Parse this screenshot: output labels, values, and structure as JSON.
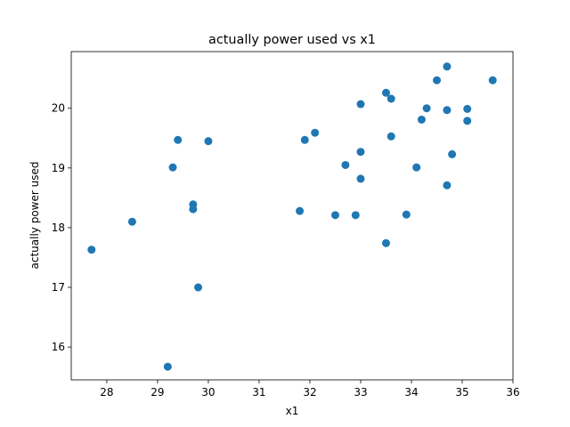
{
  "chart_data": {
    "type": "scatter",
    "title": "actually power used vs x1",
    "xlabel": "x1",
    "ylabel": "actually power used",
    "xlim": [
      27.3,
      36.0
    ],
    "ylim": [
      15.45,
      20.95
    ],
    "xticks": [
      28,
      29,
      30,
      31,
      32,
      33,
      34,
      35,
      36
    ],
    "yticks": [
      16,
      17,
      18,
      19,
      20
    ],
    "grid": false,
    "legend": "none",
    "marker_color": "#1f77b4",
    "series": [
      {
        "points": [
          {
            "x": 27.7,
            "y": 17.63
          },
          {
            "x": 28.5,
            "y": 18.1
          },
          {
            "x": 29.2,
            "y": 15.67
          },
          {
            "x": 29.3,
            "y": 19.01
          },
          {
            "x": 29.4,
            "y": 19.47
          },
          {
            "x": 29.7,
            "y": 18.39
          },
          {
            "x": 29.7,
            "y": 18.31
          },
          {
            "x": 29.8,
            "y": 17.0
          },
          {
            "x": 30.0,
            "y": 19.45
          },
          {
            "x": 31.8,
            "y": 18.28
          },
          {
            "x": 31.9,
            "y": 19.47
          },
          {
            "x": 32.1,
            "y": 19.59
          },
          {
            "x": 32.5,
            "y": 18.21
          },
          {
            "x": 32.7,
            "y": 19.05
          },
          {
            "x": 32.9,
            "y": 18.21
          },
          {
            "x": 33.0,
            "y": 20.07
          },
          {
            "x": 33.0,
            "y": 19.27
          },
          {
            "x": 33.0,
            "y": 18.82
          },
          {
            "x": 33.5,
            "y": 20.26
          },
          {
            "x": 33.5,
            "y": 17.74
          },
          {
            "x": 33.6,
            "y": 20.16
          },
          {
            "x": 33.6,
            "y": 19.53
          },
          {
            "x": 33.9,
            "y": 18.22
          },
          {
            "x": 34.1,
            "y": 19.01
          },
          {
            "x": 34.2,
            "y": 19.81
          },
          {
            "x": 34.3,
            "y": 20.0
          },
          {
            "x": 34.5,
            "y": 20.47
          },
          {
            "x": 34.7,
            "y": 20.7
          },
          {
            "x": 34.7,
            "y": 19.97
          },
          {
            "x": 34.7,
            "y": 18.71
          },
          {
            "x": 34.8,
            "y": 19.23
          },
          {
            "x": 35.1,
            "y": 19.99
          },
          {
            "x": 35.1,
            "y": 19.79
          },
          {
            "x": 35.6,
            "y": 20.47
          }
        ]
      }
    ]
  }
}
